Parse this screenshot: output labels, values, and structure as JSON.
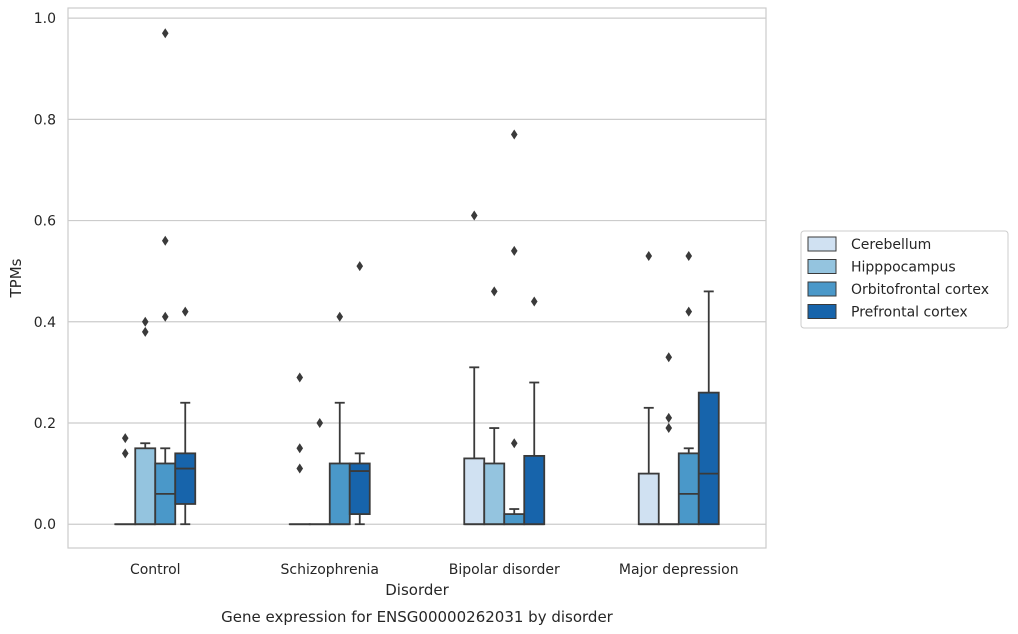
{
  "chart_data": {
    "type": "box",
    "caption": "Gene expression for ENSG00000262031 by disorder",
    "xlabel": "Disorder",
    "ylabel": "TPMs",
    "ylim": [
      -0.047,
      1.02
    ],
    "yticks": [
      0.0,
      0.2,
      0.4,
      0.6,
      0.8,
      1.0
    ],
    "ytick_labels": [
      "0.0",
      "0.2",
      "0.4",
      "0.6",
      "0.8",
      "1.0"
    ],
    "grid": "horizontal",
    "legend_position": "right",
    "categories": [
      "Control",
      "Schizophrenia",
      "Bipolar disorder",
      "Major depression"
    ],
    "series": [
      {
        "name": "Cerebellum",
        "color": "#d0e1f2",
        "boxes": [
          {
            "whislo": 0.0,
            "q1": 0.0,
            "med": 0.0,
            "q3": 0.0,
            "whishi": 0.0,
            "fliers": [
              0.17,
              0.14
            ]
          },
          {
            "whislo": 0.0,
            "q1": 0.0,
            "med": 0.0,
            "q3": 0.0,
            "whishi": 0.0,
            "fliers": [
              0.29,
              0.15,
              0.11
            ]
          },
          {
            "whislo": 0.0,
            "q1": 0.0,
            "med": 0.0,
            "q3": 0.13,
            "whishi": 0.31,
            "fliers": [
              0.61
            ]
          },
          {
            "whislo": 0.0,
            "q1": 0.0,
            "med": 0.0,
            "q3": 0.1,
            "whishi": 0.23,
            "fliers": [
              0.53
            ]
          }
        ]
      },
      {
        "name": "Hipppocampus",
        "color": "#94c4df",
        "boxes": [
          {
            "whislo": 0.0,
            "q1": 0.0,
            "med": 0.0,
            "q3": 0.15,
            "whishi": 0.16,
            "fliers": [
              0.4,
              0.38
            ]
          },
          {
            "whislo": 0.0,
            "q1": 0.0,
            "med": 0.0,
            "q3": 0.0,
            "whishi": 0.0,
            "fliers": [
              0.2
            ]
          },
          {
            "whislo": 0.0,
            "q1": 0.0,
            "med": 0.0,
            "q3": 0.12,
            "whishi": 0.19,
            "fliers": [
              0.46
            ]
          },
          {
            "whislo": 0.0,
            "q1": 0.0,
            "med": 0.0,
            "q3": 0.0,
            "whishi": 0.0,
            "fliers": [
              0.33,
              0.21,
              0.19
            ]
          }
        ]
      },
      {
        "name": "Orbitofrontal cortex",
        "color": "#4a98c9",
        "boxes": [
          {
            "whislo": 0.0,
            "q1": 0.0,
            "med": 0.06,
            "q3": 0.12,
            "whishi": 0.15,
            "fliers": [
              0.97,
              0.56,
              0.41
            ]
          },
          {
            "whislo": 0.0,
            "q1": 0.0,
            "med": 0.0,
            "q3": 0.12,
            "whishi": 0.24,
            "fliers": [
              0.41
            ]
          },
          {
            "whislo": 0.0,
            "q1": 0.0,
            "med": 0.0,
            "q3": 0.02,
            "whishi": 0.03,
            "fliers": [
              0.77,
              0.54,
              0.16
            ]
          },
          {
            "whislo": 0.0,
            "q1": 0.0,
            "med": 0.06,
            "q3": 0.14,
            "whishi": 0.15,
            "fliers": [
              0.53,
              0.42
            ]
          }
        ]
      },
      {
        "name": "Prefrontal cortex",
        "color": "#1764ab",
        "boxes": [
          {
            "whislo": 0.0,
            "q1": 0.04,
            "med": 0.11,
            "q3": 0.14,
            "whishi": 0.24,
            "fliers": [
              0.42
            ]
          },
          {
            "whislo": 0.0,
            "q1": 0.02,
            "med": 0.105,
            "q3": 0.12,
            "whishi": 0.14,
            "fliers": [
              0.51
            ]
          },
          {
            "whislo": 0.0,
            "q1": 0.0,
            "med": 0.0,
            "q3": 0.135,
            "whishi": 0.28,
            "fliers": [
              0.44
            ]
          },
          {
            "whislo": 0.0,
            "q1": 0.0,
            "med": 0.1,
            "q3": 0.26,
            "whishi": 0.46,
            "fliers": []
          }
        ]
      }
    ]
  }
}
